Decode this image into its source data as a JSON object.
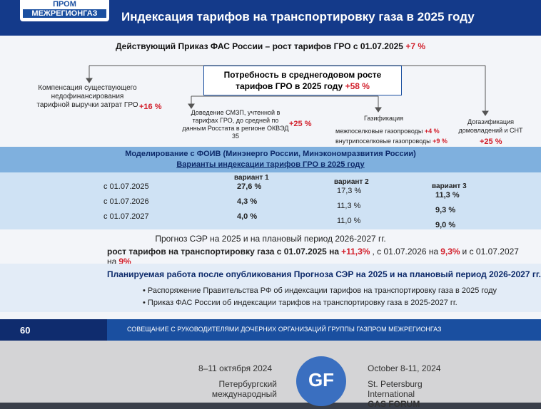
{
  "header": {
    "logo_top": "ПРОМ",
    "logo": "МЕЖРЕГИОНГАЗ",
    "title": "Индексация тарифов на транспортировку газа в 2025 году"
  },
  "order": {
    "text": "Действующий Приказ ФАС России – рост тарифов ГРО с 01.07.2025",
    "value": "+7 %"
  },
  "need": {
    "text": "Потребность в среднегодовом росте тарифов ГРО в 2025 году",
    "value": "+58 %"
  },
  "items": [
    {
      "label": "Компенсация существующего недофинансирования тарифной выручки затрат ГРО",
      "value": "+16 %"
    },
    {
      "label": "Доведение СМЗП, учтенной в тарифах ГРО, до средней по данным Росстата в регионе ОКВЭД 35",
      "value": "+25 %"
    },
    {
      "label": "Газификация",
      "parts": [
        {
          "label": "межпоселковые газопроводы",
          "value": "+4 %"
        },
        {
          "label": "внутрипоселковые газопроводы",
          "value": "+9 %"
        }
      ]
    },
    {
      "label": "Догазификация домовладений и СНТ",
      "value": "+25 %"
    }
  ],
  "modeling": {
    "title": "Моделирование с ФОИВ (Минэнерго России, Минэкономразвития России)",
    "subtitle": "Варианты индексации тарифов ГРО в 2025 году"
  },
  "table": {
    "columns": [
      "вариант 1",
      "вариант 2",
      "вариант 3"
    ],
    "rows": [
      {
        "date": "с 01.07.2025",
        "cells": [
          "27,6 %",
          "17,3 %",
          "11,3 %"
        ]
      },
      {
        "date": "с 01.07.2026",
        "cells": [
          "4,3 %",
          "11,3 %",
          "9,3 %"
        ]
      },
      {
        "date": "с 01.07.2027",
        "cells": [
          "4,0 %",
          "11,0 %",
          "9,0 %"
        ]
      }
    ]
  },
  "forecast": {
    "title": "Прогноз СЭР на 2025 и на плановый период 2026-2027 гг.",
    "line": [
      {
        "text": "рост тарифов на транспортировку газа с 01.07.2025 на",
        "style": "bold"
      },
      {
        "text": "+11,3%",
        "style": "red"
      },
      {
        "text": ", с 01.07.2026 на",
        "style": "plain"
      },
      {
        "text": "9,3%",
        "style": "red"
      },
      {
        "text": "и с 01.07.2027 на",
        "style": "plain"
      },
      {
        "text": "9%",
        "style": "red"
      }
    ]
  },
  "planned": {
    "title": "Планируемая работа после опубликования Прогноза СЭР на 2025 и на плановый период 2026-2027 гг.",
    "bullets": [
      "Распоряжение Правительства РФ об индексации тарифов на транспортировку газа в 2025 году",
      "Приказ ФАС России об индексации тарифов на транспортировку газа в 2025-2027 гг."
    ]
  },
  "footer": {
    "page": "60",
    "text": "Совещание с руководителями дочерних организаций группы Газпром межрегионгаз"
  },
  "banner": {
    "date_ru": "8–11 октября 2024",
    "name_ru": "Петербургский международный",
    "logo": "GF",
    "date_en": "October 8-11, 2024",
    "name_en": "St. Petersburg International",
    "forum_en": "GAS FORUM"
  }
}
